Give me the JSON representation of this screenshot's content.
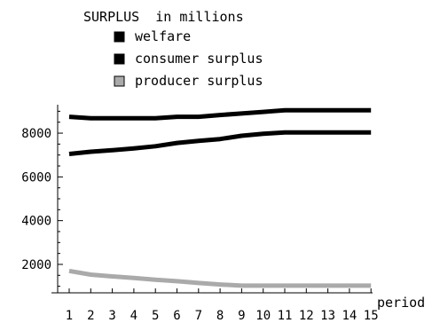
{
  "chart_data": {
    "type": "line",
    "title": "SURPLUS  in millions",
    "xlabel": "period",
    "ylabel": "",
    "x": [
      1,
      2,
      3,
      4,
      5,
      6,
      7,
      8,
      9,
      10,
      11,
      12,
      13,
      14,
      15
    ],
    "x_tick_labels": [
      "1",
      "2",
      "3",
      "4",
      "5",
      "6",
      "7",
      "8",
      "9",
      "10",
      "11",
      "12",
      "13",
      "14",
      "15"
    ],
    "y_ticks": [
      2000,
      4000,
      6000,
      8000
    ],
    "y_tick_labels": [
      "2000",
      "4000",
      "6000",
      "8000"
    ],
    "ylim": [
      700,
      9300
    ],
    "xlim": [
      0,
      15.5
    ],
    "grid": false,
    "legend_position": "top",
    "series": [
      {
        "name": "welfare",
        "color": "#000000",
        "values": [
          8750,
          8680,
          8680,
          8680,
          8680,
          8750,
          8750,
          8830,
          8900,
          8970,
          9050,
          9050,
          9050,
          9050,
          9050
        ]
      },
      {
        "name": "consumer  surplus",
        "color": "#000000",
        "values": [
          7050,
          7150,
          7220,
          7300,
          7400,
          7550,
          7650,
          7730,
          7880,
          7970,
          8030,
          8030,
          8030,
          8030,
          8030
        ]
      },
      {
        "name": "producer  surplus",
        "color": "#aaaaaa",
        "values": [
          1700,
          1530,
          1450,
          1380,
          1300,
          1230,
          1150,
          1080,
          1030,
          1030,
          1030,
          1030,
          1030,
          1030,
          1030
        ]
      }
    ]
  }
}
